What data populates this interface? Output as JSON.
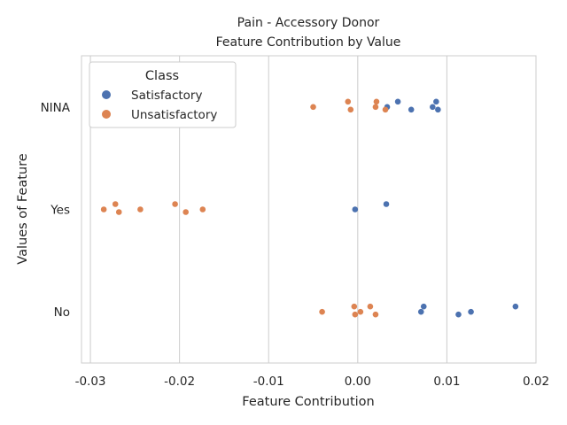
{
  "chart_data": {
    "type": "scatter",
    "title": "Pain - Accessory Donor",
    "subtitle": "Feature Contribution by Value",
    "xlabel": "Feature Contribution",
    "ylabel": "Values of Feature",
    "xlim": [
      -0.031,
      0.02
    ],
    "x_ticks": [
      "-0.03",
      "-0.02",
      "-0.01",
      "0.00",
      "0.01",
      "0.02"
    ],
    "x_tick_values": [
      -0.03,
      -0.02,
      -0.01,
      0.0,
      0.01,
      0.02
    ],
    "categories": [
      "NINA",
      "Yes",
      "No"
    ],
    "grid": "vertical",
    "legend": {
      "title": "Class",
      "placement": "top-left",
      "entries": [
        "Satisfactory",
        "Unsatisfactory"
      ]
    },
    "colors": {
      "Satisfactory": "#4c72b0",
      "Unsatisfactory": "#dd8452"
    },
    "series": [
      {
        "name": "Satisfactory",
        "points": [
          {
            "category": "NINA",
            "x": 0.0033
          },
          {
            "category": "NINA",
            "x": 0.0045
          },
          {
            "category": "NINA",
            "x": 0.006
          },
          {
            "category": "NINA",
            "x": 0.0084
          },
          {
            "category": "NINA",
            "x": 0.0088
          },
          {
            "category": "NINA",
            "x": 0.009
          },
          {
            "category": "Yes",
            "x": -0.0003
          },
          {
            "category": "Yes",
            "x": 0.0032
          },
          {
            "category": "No",
            "x": 0.0071
          },
          {
            "category": "No",
            "x": 0.0074
          },
          {
            "category": "No",
            "x": 0.0113
          },
          {
            "category": "No",
            "x": 0.0127
          },
          {
            "category": "No",
            "x": 0.0177
          }
        ]
      },
      {
        "name": "Unsatisfactory",
        "points": [
          {
            "category": "NINA",
            "x": -0.005
          },
          {
            "category": "NINA",
            "x": -0.0011
          },
          {
            "category": "NINA",
            "x": -0.0008
          },
          {
            "category": "NINA",
            "x": 0.002
          },
          {
            "category": "NINA",
            "x": 0.0021
          },
          {
            "category": "NINA",
            "x": 0.0031
          },
          {
            "category": "Yes",
            "x": -0.0285
          },
          {
            "category": "Yes",
            "x": -0.0272
          },
          {
            "category": "Yes",
            "x": -0.0268
          },
          {
            "category": "Yes",
            "x": -0.0244
          },
          {
            "category": "Yes",
            "x": -0.0205
          },
          {
            "category": "Yes",
            "x": -0.0193
          },
          {
            "category": "Yes",
            "x": -0.0174
          },
          {
            "category": "No",
            "x": -0.004
          },
          {
            "category": "No",
            "x": -0.0004
          },
          {
            "category": "No",
            "x": -0.0003
          },
          {
            "category": "No",
            "x": 0.0003
          },
          {
            "category": "No",
            "x": 0.0014
          },
          {
            "category": "No",
            "x": 0.002
          }
        ]
      }
    ]
  }
}
